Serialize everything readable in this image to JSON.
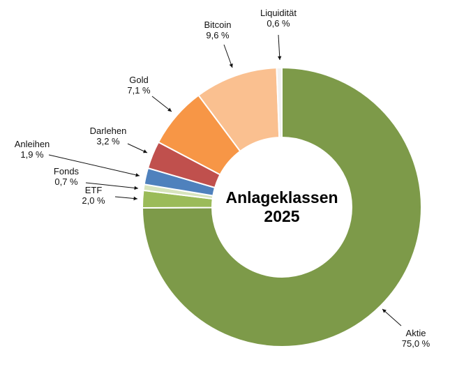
{
  "chart_data": {
    "type": "pie",
    "variant": "donut",
    "title": "",
    "center_label_lines": [
      "Anlageklassen",
      "2025"
    ],
    "legend": "none",
    "slices": [
      {
        "label": "Aktie",
        "value": 75.0,
        "value_text": "75,0 %",
        "color": "#7D9A49"
      },
      {
        "label": "ETF",
        "value": 2.0,
        "value_text": "2,0 %",
        "color": "#9BBB59"
      },
      {
        "label": "Fonds",
        "value": 0.7,
        "value_text": "0,7 %",
        "color": "#D7E4BD"
      },
      {
        "label": "Anleihen",
        "value": 1.9,
        "value_text": "1,9 %",
        "color": "#4F81BD"
      },
      {
        "label": "Darlehen",
        "value": 3.2,
        "value_text": "3,2 %",
        "color": "#C0504D"
      },
      {
        "label": "Gold",
        "value": 7.1,
        "value_text": "7,1 %",
        "color": "#F79646"
      },
      {
        "label": "Bitcoin",
        "value": 9.6,
        "value_text": "9,6 %",
        "color": "#FAC090"
      },
      {
        "label": "Liquidität",
        "value": 0.6,
        "value_text": "0,6 %",
        "color": "#F2F2F2"
      }
    ]
  }
}
